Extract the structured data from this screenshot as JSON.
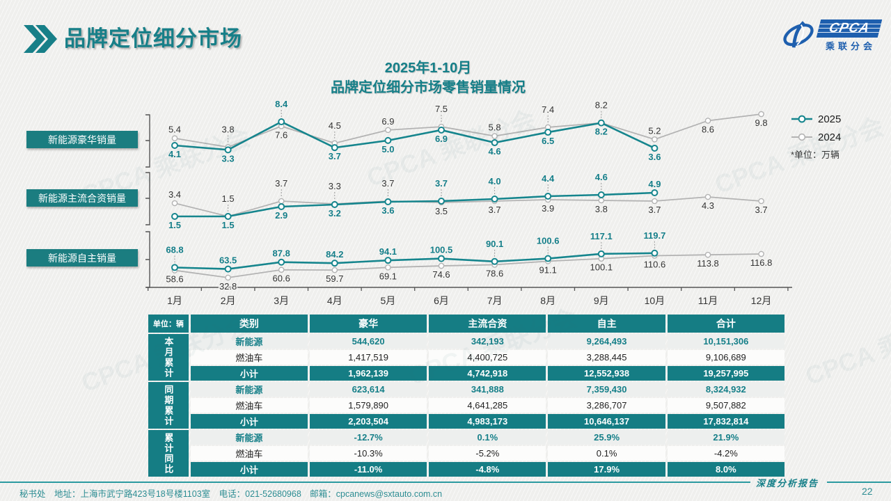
{
  "page": {
    "title": "品牌定位细分市场",
    "page_number": "22",
    "footer_left": "秘书处　地址：上海市武宁路423号18号楼1103室　电话：021-52680968　邮箱：cpcanews@sxtauto.com.cn",
    "footer_right": "深度分析报告"
  },
  "logo": {
    "cpca": "CPCA",
    "sub": "乘联分会"
  },
  "watermark": {
    "text": "CPCA 乘联分会"
  },
  "chart": {
    "title_line1": "2025年1-10月",
    "title_line2": "品牌定位细分市场零售销量情况",
    "unit_note": "*单位：万辆",
    "legend": [
      "2025",
      "2024"
    ],
    "colors": {
      "s2025": "#15858d",
      "s2024": "#b3b3b3"
    }
  },
  "chart_data": [
    {
      "type": "line",
      "title": "新能源豪华销量",
      "x": [
        "1月",
        "2月",
        "3月",
        "4月",
        "5月",
        "6月",
        "7月",
        "8月",
        "9月",
        "10月",
        "11月",
        "12月"
      ],
      "series": [
        {
          "name": "2025",
          "values": [
            4.1,
            3.3,
            8.4,
            3.7,
            5.0,
            6.9,
            4.6,
            6.5,
            8.2,
            3.6
          ]
        },
        {
          "name": "2024",
          "values": [
            5.4,
            3.8,
            7.6,
            4.5,
            6.9,
            7.5,
            5.8,
            7.4,
            8.2,
            5.2,
            8.6,
            9.8
          ]
        }
      ],
      "ylabel": "万辆",
      "legend_position": "right",
      "grid": false
    },
    {
      "type": "line",
      "title": "新能源主流合资销量",
      "x": [
        "1月",
        "2月",
        "3月",
        "4月",
        "5月",
        "6月",
        "7月",
        "8月",
        "9月",
        "10月",
        "11月",
        "12月"
      ],
      "series": [
        {
          "name": "2025",
          "values": [
            1.5,
            1.5,
            2.9,
            3.2,
            3.6,
            3.7,
            4.0,
            4.4,
            4.6,
            4.9
          ]
        },
        {
          "name": "2024",
          "values": [
            3.4,
            1.5,
            3.7,
            3.3,
            3.7,
            3.5,
            3.7,
            3.9,
            3.8,
            3.7,
            4.3,
            3.7
          ]
        }
      ],
      "ylabel": "万辆",
      "legend_position": "right",
      "grid": false
    },
    {
      "type": "line",
      "title": "新能源自主销量",
      "x": [
        "1月",
        "2月",
        "3月",
        "4月",
        "5月",
        "6月",
        "7月",
        "8月",
        "9月",
        "10月",
        "11月",
        "12月"
      ],
      "series": [
        {
          "name": "2025",
          "values": [
            68.8,
            63.5,
            87.8,
            84.2,
            94.1,
            100.5,
            90.1,
            100.6,
            117.1,
            119.7
          ]
        },
        {
          "name": "2024",
          "values": [
            58.6,
            32.8,
            60.6,
            59.7,
            69.1,
            74.6,
            78.6,
            91.1,
            100.1,
            110.6,
            113.8,
            116.8
          ]
        }
      ],
      "ylabel": "万辆",
      "legend_position": "right",
      "grid": false
    }
  ],
  "table": {
    "unit_label": "单位：辆",
    "headers": [
      "类别",
      "豪华",
      "主流合资",
      "自主",
      "合计"
    ],
    "groups": [
      {
        "label": "本月累计",
        "rows": [
          {
            "type": "nev",
            "cells": [
              "新能源",
              "544,620",
              "342,193",
              "9,264,493",
              "10,151,306"
            ]
          },
          {
            "type": "ice",
            "cells": [
              "燃油车",
              "1,417,519",
              "4,400,725",
              "3,288,445",
              "9,106,689"
            ]
          },
          {
            "type": "sub",
            "cells": [
              "小计",
              "1,962,139",
              "4,742,918",
              "12,552,938",
              "19,257,995"
            ]
          }
        ]
      },
      {
        "label": "同期累计",
        "rows": [
          {
            "type": "nev",
            "cells": [
              "新能源",
              "623,614",
              "341,888",
              "7,359,430",
              "8,324,932"
            ]
          },
          {
            "type": "ice",
            "cells": [
              "燃油车",
              "1,579,890",
              "4,641,285",
              "3,286,707",
              "9,507,882"
            ]
          },
          {
            "type": "sub",
            "cells": [
              "小计",
              "2,203,504",
              "4,983,173",
              "10,646,137",
              "17,832,814"
            ]
          }
        ]
      },
      {
        "label": "累计同比",
        "rows": [
          {
            "type": "nev",
            "cells": [
              "新能源",
              "-12.7%",
              "0.1%",
              "25.9%",
              "21.9%"
            ]
          },
          {
            "type": "ice",
            "cells": [
              "燃油车",
              "-10.3%",
              "-5.2%",
              "0.1%",
              "-4.2%"
            ]
          },
          {
            "type": "sub",
            "cells": [
              "小计",
              "-11.0%",
              "-4.8%",
              "17.9%",
              "8.0%"
            ]
          }
        ]
      }
    ]
  }
}
